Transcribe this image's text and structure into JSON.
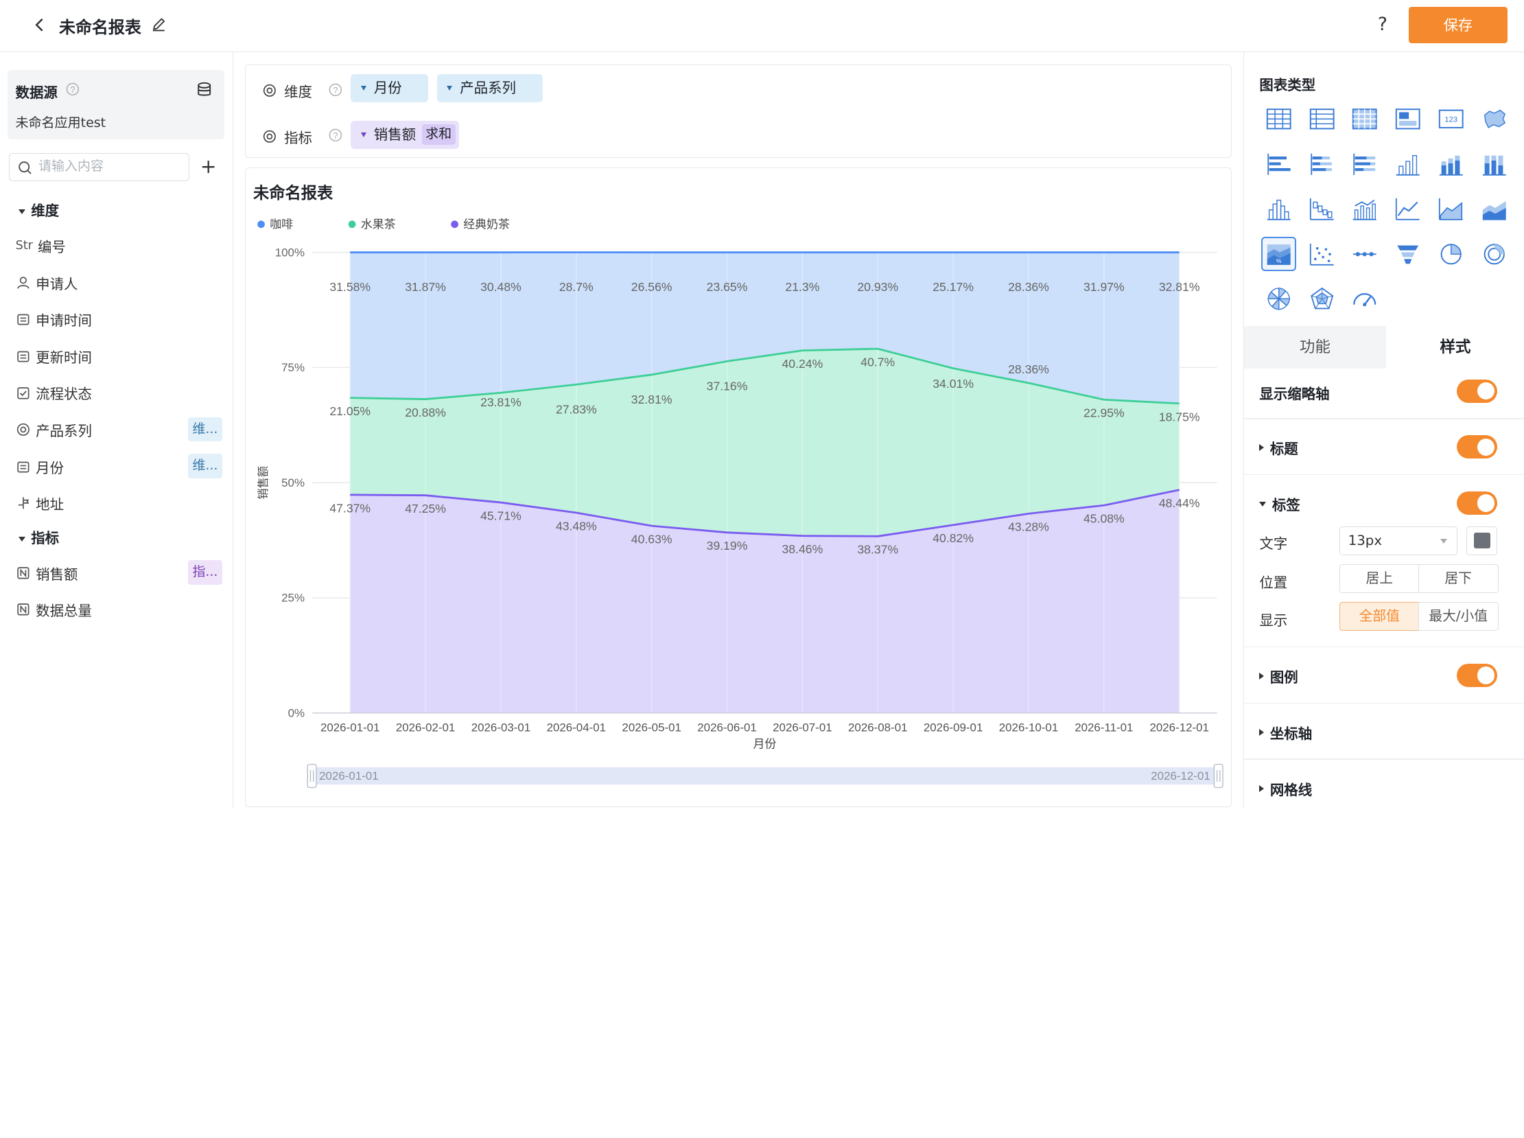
{
  "header": {
    "title": "未命名报表",
    "help": "?",
    "save_label": "保存"
  },
  "datasource": {
    "label": "数据源",
    "app_name": "未命名应用test",
    "search_placeholder": "请输入内容",
    "add": "+"
  },
  "dimensions": {
    "label": "维度",
    "items": [
      {
        "icon": "Str",
        "label": "编号"
      },
      {
        "icon": "person",
        "label": "申请人"
      },
      {
        "icon": "calendar",
        "label": "申请时间"
      },
      {
        "icon": "calendar",
        "label": "更新时间"
      },
      {
        "icon": "checkbox",
        "label": "流程状态"
      },
      {
        "icon": "radio",
        "label": "产品系列",
        "tag": "维..."
      },
      {
        "icon": "calendar",
        "label": "月份",
        "tag": "维..."
      },
      {
        "icon": "location",
        "label": "地址"
      }
    ]
  },
  "metrics": {
    "label": "指标",
    "items": [
      {
        "icon": "N",
        "label": "销售额",
        "tag": "指..."
      },
      {
        "icon": "N",
        "label": "数据总量"
      }
    ]
  },
  "dropzone": {
    "dim_label": "维度",
    "metric_label": "指标",
    "dim_pills": [
      "月份",
      "产品系列"
    ],
    "metric_pill": "销售额",
    "metric_agg": "求和"
  },
  "chart_title": "未命名报表",
  "chart_data": {
    "type": "area",
    "stacked_percent": true,
    "xlabel": "月份",
    "ylabel": "销售额",
    "ylim": [
      0,
      100
    ],
    "y_ticks": [
      "0%",
      "25%",
      "50%",
      "75%",
      "100%"
    ],
    "categories": [
      "2026-01-01",
      "2026-02-01",
      "2026-03-01",
      "2026-04-01",
      "2026-05-01",
      "2026-06-01",
      "2026-07-01",
      "2026-08-01",
      "2026-09-01",
      "2026-10-01",
      "2026-11-01",
      "2026-12-01"
    ],
    "series": [
      {
        "name": "经典奶茶",
        "color": "#7a5cf0",
        "fill": "#ddd7fb",
        "values": [
          47.37,
          47.25,
          45.71,
          43.48,
          40.63,
          39.19,
          38.46,
          38.37,
          40.82,
          43.28,
          45.08,
          48.44
        ],
        "labels": [
          "47.37%",
          "47.25%",
          "45.71%",
          "43.48%",
          "40.63%",
          "39.19%",
          "38.46%",
          "38.37%",
          "40.82%",
          "43.28%",
          "45.08%",
          "48.44%"
        ]
      },
      {
        "name": "水果茶",
        "color": "#3ecf96",
        "fill": "#c4f2e0",
        "values": [
          21.05,
          20.88,
          23.81,
          27.83,
          32.81,
          37.16,
          40.24,
          40.7,
          34.01,
          28.36,
          22.95,
          18.75
        ],
        "labels": [
          "21.05%",
          "20.88%",
          "23.81%",
          "27.83%",
          "32.81%",
          "37.16%",
          "40.24%",
          "40.7%",
          "34.01%",
          "28.36%",
          "22.95%",
          "18.75%"
        ]
      },
      {
        "name": "咖啡",
        "color": "#4f8ef7",
        "fill": "#cce0fb",
        "values": [
          31.58,
          31.87,
          30.48,
          28.7,
          26.56,
          23.65,
          21.3,
          20.93,
          25.17,
          28.36,
          31.97,
          32.81
        ],
        "labels": [
          "31.58%",
          "31.87%",
          "30.48%",
          "28.7%",
          "26.56%",
          "23.65%",
          "21.3%",
          "20.93%",
          "25.17%",
          "28.36%",
          "31.97%",
          "32.81%"
        ]
      }
    ],
    "legend": [
      "咖啡",
      "水果茶",
      "经典奶茶"
    ],
    "legend_position": "top-left",
    "grid": true,
    "zoom_start": "2026-01-01",
    "zoom_end": "2026-12-01"
  },
  "panel": {
    "chart_type_label": "图表类型",
    "tabs": [
      "功能",
      "样式"
    ],
    "show_zoom": "显示缩略轴",
    "title": "标题",
    "label": "标签",
    "text": "文字",
    "font_size": "13px",
    "position": "位置",
    "pos_options": [
      "居上",
      "居下"
    ],
    "display": "显示",
    "display_options": [
      "全部值",
      "最大/小值"
    ],
    "legend": "图例",
    "axis": "坐标轴",
    "gridline": "网格线"
  }
}
